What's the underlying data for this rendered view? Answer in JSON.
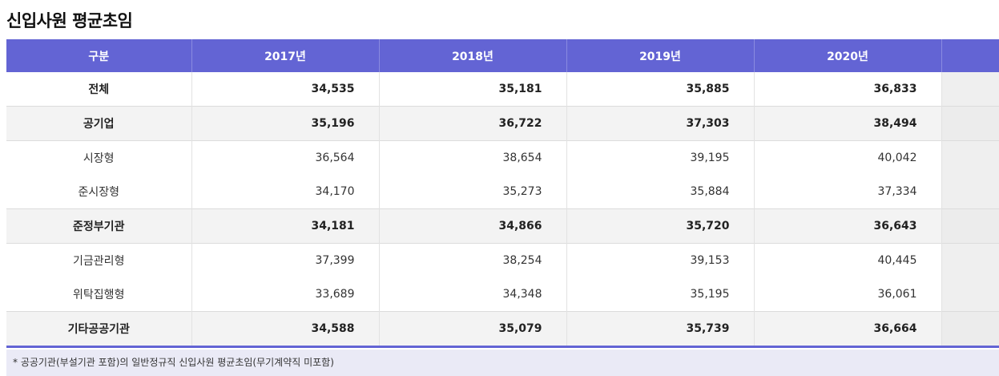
{
  "title": "신입사원 평균초임",
  "table": {
    "headers": [
      "구분",
      "2017년",
      "2018년",
      "2019년",
      "2020년"
    ],
    "rows": [
      {
        "label": "전체",
        "values": [
          "34,535",
          "35,181",
          "35,885",
          "36,833"
        ]
      },
      {
        "label": "공기업",
        "values": [
          "35,196",
          "36,722",
          "37,303",
          "38,494"
        ]
      },
      {
        "label": "시장형",
        "values": [
          "36,564",
          "38,654",
          "39,195",
          "40,042"
        ]
      },
      {
        "label": "준시장형",
        "values": [
          "34,170",
          "35,273",
          "35,884",
          "37,334"
        ]
      },
      {
        "label": "준정부기관",
        "values": [
          "34,181",
          "34,866",
          "35,720",
          "36,643"
        ]
      },
      {
        "label": "기금관리형",
        "values": [
          "37,399",
          "38,254",
          "39,153",
          "40,445"
        ]
      },
      {
        "label": "위탁집행형",
        "values": [
          "33,689",
          "34,348",
          "35,195",
          "36,061"
        ]
      },
      {
        "label": "기타공공기관",
        "values": [
          "34,588",
          "35,079",
          "35,739",
          "36,664"
        ]
      }
    ]
  },
  "footnote": "* 공공기관(부설기관 포함)의 일반정규직 신입사원 평균초임(무기계약직 미포함)"
}
